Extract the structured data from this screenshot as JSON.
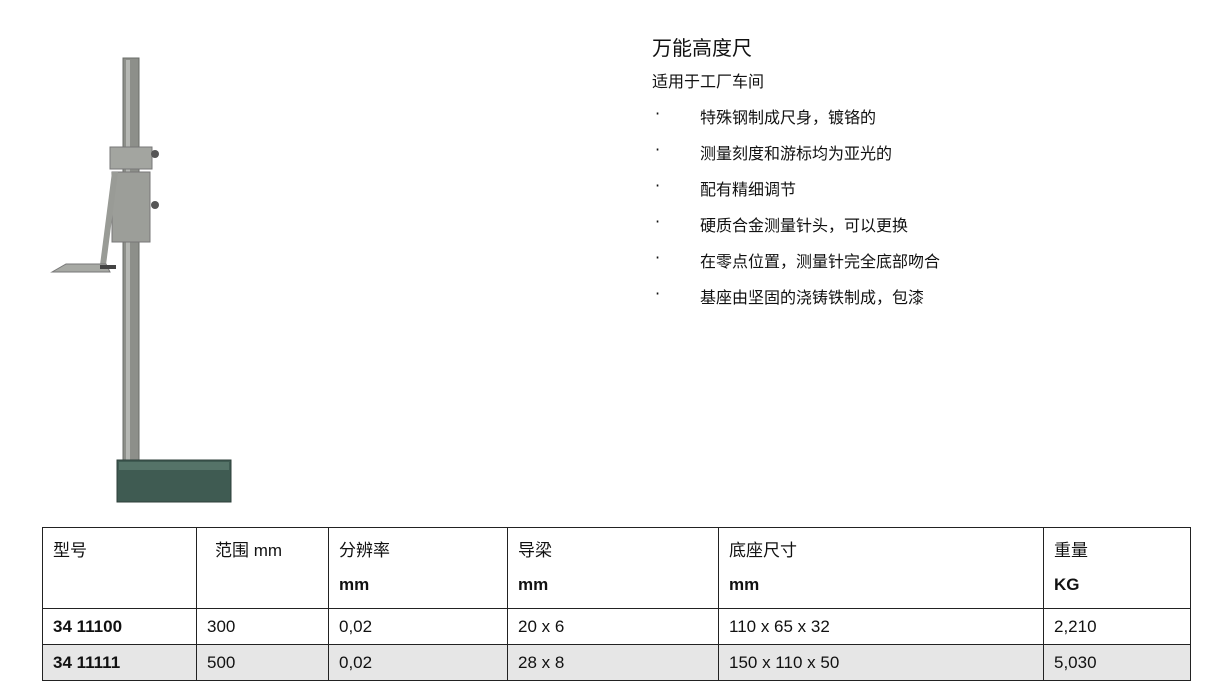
{
  "product": {
    "title": "万能高度尺",
    "subtitle": "适用于工厂车间",
    "features": [
      "特殊钢制成尺身，镀铬的",
      "测量刻度和游标均为亚光的",
      "配有精细调节",
      "硬质合金测量针头，可以更换",
      "在零点位置，测量针完全底部吻合",
      "基座由坚固的浇铸铁制成，包漆"
    ]
  },
  "table": {
    "headers": [
      [
        "型号",
        ""
      ],
      [
        "范围 mm",
        ""
      ],
      [
        "分辨率",
        "mm"
      ],
      [
        "导梁",
        "mm"
      ],
      [
        "底座尺寸",
        "mm"
      ],
      [
        "重量",
        "KG"
      ]
    ],
    "rows": [
      [
        "34 11100",
        "300",
        "0,02",
        "20 x 6",
        "110 x 65 x 32",
        "2,210"
      ],
      [
        "34 11111",
        "500",
        "0,02",
        "28 x 8",
        "150 x 110 x 50",
        "5,030"
      ]
    ]
  }
}
